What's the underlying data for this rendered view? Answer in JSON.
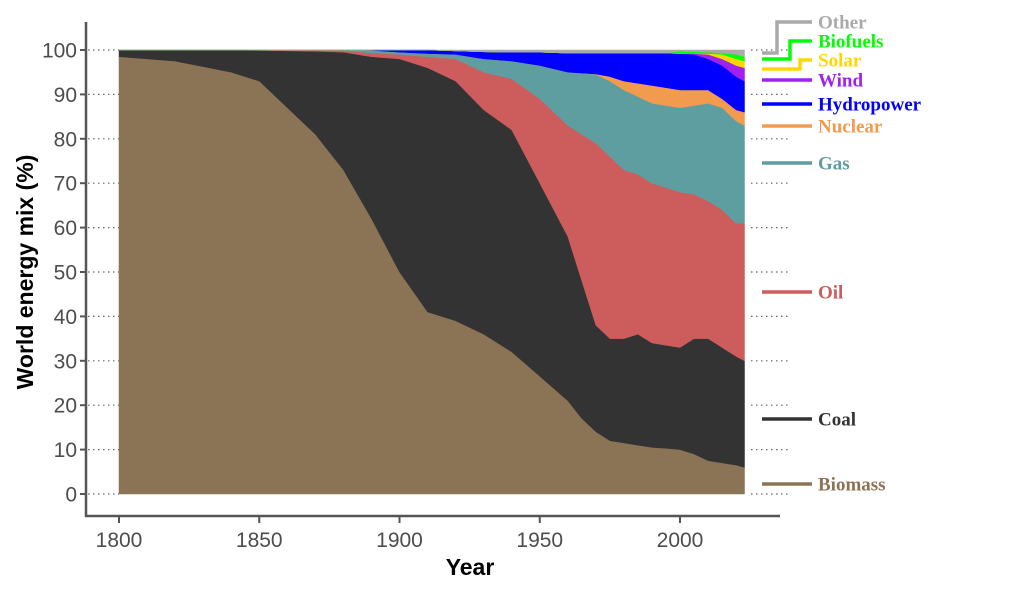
{
  "chart_data": {
    "type": "area",
    "stacked": true,
    "xlabel": "Year",
    "ylabel": "World energy mix (%)",
    "xlim": [
      1800,
      2023
    ],
    "ylim": [
      0,
      100
    ],
    "xticks": [
      "1800",
      "1850",
      "1900",
      "1950",
      "2000"
    ],
    "yticks": [
      "0",
      "10",
      "20",
      "30",
      "40",
      "50",
      "60",
      "70",
      "80",
      "90",
      "100"
    ],
    "grid": "horizontal dotted",
    "legend": "right, labels at series ends",
    "x": [
      1800,
      1820,
      1840,
      1850,
      1860,
      1870,
      1880,
      1890,
      1900,
      1910,
      1920,
      1930,
      1940,
      1950,
      1960,
      1965,
      1970,
      1975,
      1980,
      1985,
      1990,
      1995,
      2000,
      2005,
      2010,
      2015,
      2020,
      2023
    ],
    "series": [
      {
        "name": "Biomass",
        "color": "#8b7355",
        "values": [
          98.5,
          97.5,
          95,
          93,
          87,
          81,
          73,
          62,
          50,
          41,
          39,
          36,
          32,
          26.5,
          21,
          17,
          14,
          12,
          11.5,
          11,
          10.5,
          10.3,
          10,
          9,
          7.5,
          7,
          6.5,
          6
        ]
      },
      {
        "name": "Coal",
        "color": "#333333",
        "values": [
          1.5,
          2.5,
          5,
          6.9,
          12.8,
          18.7,
          26.5,
          36.5,
          48,
          55,
          54,
          50.5,
          50,
          43.5,
          37,
          31,
          24,
          23,
          23.5,
          25,
          23.5,
          23.2,
          23,
          26,
          27.5,
          26,
          24.5,
          24
        ]
      },
      {
        "name": "Oil",
        "color": "#cd5c5c",
        "values": [
          0,
          0,
          0,
          0.1,
          0.2,
          0.3,
          0.4,
          0.8,
          1,
          2.5,
          5,
          8.5,
          11.5,
          19,
          25,
          33,
          41,
          41,
          38,
          36,
          36,
          35.5,
          35,
          32.5,
          31,
          31,
          30,
          31
        ]
      },
      {
        "name": "Gas",
        "color": "#5f9ea0",
        "values": [
          0,
          0,
          0,
          0,
          0,
          0,
          0.1,
          0.6,
          0.5,
          0.7,
          1,
          3,
          4,
          7.5,
          12,
          13.8,
          15.5,
          17,
          18,
          17.5,
          18,
          18.5,
          19,
          20,
          22,
          23,
          23,
          22
        ]
      },
      {
        "name": "Nuclear",
        "color": "#f29b4f",
        "values": [
          0,
          0,
          0,
          0,
          0,
          0,
          0,
          0,
          0,
          0,
          0,
          0,
          0,
          0,
          0,
          0,
          0.1,
          1,
          2,
          3,
          4,
          4,
          4,
          3.5,
          3,
          2,
          2.5,
          3
        ]
      },
      {
        "name": "Hydropower",
        "color": "#0000ff",
        "values": [
          0,
          0,
          0,
          0,
          0,
          0,
          0,
          0.1,
          0.5,
          0.8,
          0.8,
          1.6,
          2,
          3,
          4.3,
          4.5,
          4.7,
          5.3,
          6.3,
          6.8,
          7.3,
          7.8,
          8.2,
          8,
          7,
          7.5,
          7.5,
          7
        ]
      },
      {
        "name": "Wind",
        "color": "#a020f0",
        "values": [
          0,
          0,
          0,
          0,
          0,
          0,
          0,
          0,
          0,
          0,
          0,
          0,
          0,
          0,
          0,
          0,
          0,
          0,
          0,
          0,
          0,
          0,
          0,
          0.2,
          1,
          1.5,
          2.5,
          3
        ]
      },
      {
        "name": "Solar",
        "color": "#ffd700",
        "values": [
          0,
          0,
          0,
          0,
          0,
          0,
          0,
          0,
          0,
          0,
          0,
          0,
          0,
          0,
          0,
          0,
          0,
          0,
          0,
          0,
          0,
          0,
          0,
          0,
          0.2,
          1,
          1.5,
          1.5
        ]
      },
      {
        "name": "Biofuels",
        "color": "#00ff00",
        "values": [
          0,
          0,
          0,
          0,
          0,
          0,
          0,
          0,
          0,
          0,
          0,
          0,
          0,
          0,
          0,
          0,
          0,
          0,
          0,
          0,
          0,
          0,
          0.5,
          0.4,
          0.3,
          0.3,
          1,
          1
        ]
      },
      {
        "name": "Other",
        "color": "#aaaaaa",
        "values": [
          0,
          0,
          0,
          0,
          0,
          0,
          0,
          0,
          0,
          0,
          0.2,
          0.4,
          0.5,
          0.5,
          0.7,
          0.7,
          0.7,
          0.7,
          0.7,
          0.7,
          0.7,
          0.7,
          0.3,
          0.4,
          0.5,
          0.7,
          1,
          1.5
        ]
      }
    ]
  }
}
